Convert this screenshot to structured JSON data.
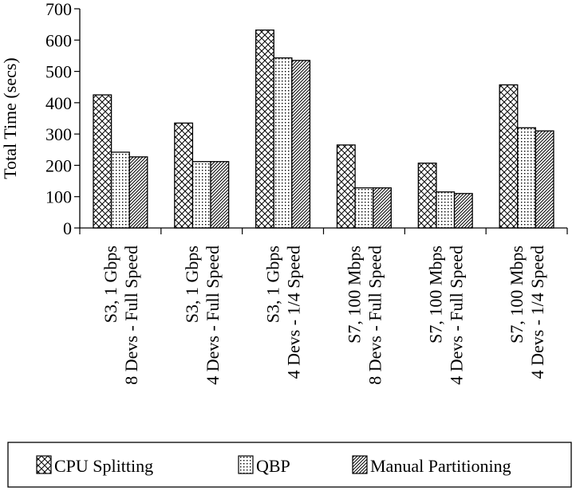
{
  "chart_data": {
    "type": "bar",
    "title": "",
    "xlabel": "",
    "ylabel": "Total Time (secs)",
    "ylim": [
      0,
      700
    ],
    "yticks": [
      0,
      100,
      200,
      300,
      400,
      500,
      600,
      700
    ],
    "grid": false,
    "legend_position": "bottom",
    "categories": [
      [
        "S3, 1 Gbps",
        "8 Devs - Full Speed"
      ],
      [
        "S3, 1 Gbps",
        "4 Devs - Full Speed"
      ],
      [
        "S3, 1 Gbps",
        "4 Devs - 1/4 Speed"
      ],
      [
        "S7, 100 Mbps",
        "8 Devs - Full Speed"
      ],
      [
        "S7, 100 Mbps",
        "4 Devs - Full Speed"
      ],
      [
        "S7, 100 Mbps",
        "4 Devs - 1/4 Speed"
      ]
    ],
    "series": [
      {
        "name": "CPU Splitting",
        "pattern": "crosshatch",
        "values": [
          425,
          335,
          632,
          265,
          207,
          457
        ]
      },
      {
        "name": "QBP",
        "pattern": "dots",
        "values": [
          242,
          212,
          543,
          128,
          115,
          320
        ]
      },
      {
        "name": "Manual Partitioning",
        "pattern": "diagonal",
        "values": [
          227,
          212,
          535,
          128,
          110,
          310
        ]
      }
    ]
  }
}
